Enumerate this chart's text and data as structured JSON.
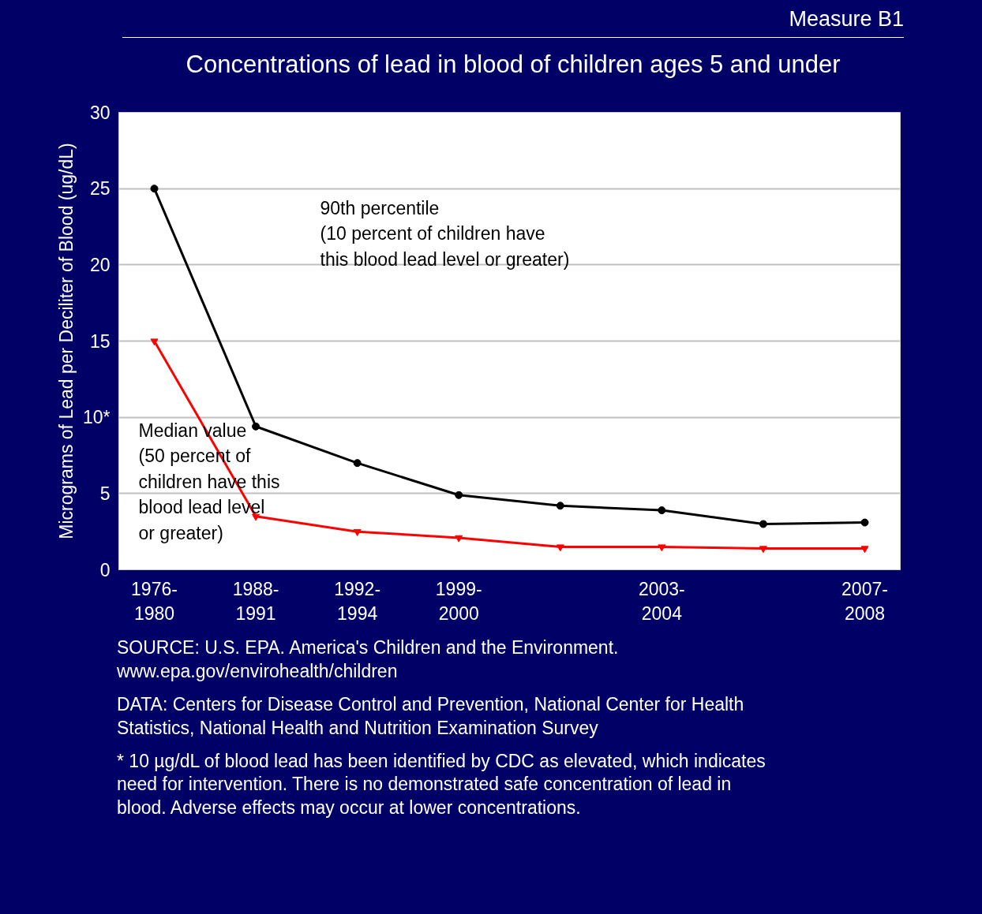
{
  "chart_data": {
    "type": "line",
    "title": "Concentrations of lead in blood of children ages 5 and under",
    "subtitle": "Measure B1",
    "ylabel": "Micrograms of Lead per Deciliter of Blood (ug/dL)",
    "categories": [
      "1976-\n1980",
      "1988-\n1991",
      "1992-\n1994",
      "1999-\n2000",
      null,
      "2003-\n2004",
      null,
      "2007-\n2008"
    ],
    "series": [
      {
        "color": "#000000",
        "marker": "circle",
        "values": [
          25.0,
          9.4,
          7.0,
          4.9,
          4.2,
          3.9,
          3.0,
          3.1
        ]
      },
      {
        "color": "#ff0000",
        "marker": "triangle",
        "values": [
          15.0,
          3.5,
          2.5,
          2.1,
          1.5,
          1.5,
          1.4,
          1.4
        ]
      }
    ],
    "ylim": [
      0,
      30
    ],
    "yticks": [
      0,
      5,
      {
        "value": 10,
        "label": "10*"
      },
      15,
      20,
      25,
      30
    ],
    "grid": "y",
    "annotations": [
      "90th percentile\n(10 percent of children have\nthis blood lead level or greater)",
      "Median value\n(50 percent of\nchildren have this\nblood lead level\nor greater)",
      "SOURCE: U.S. EPA. America's Children and the Environment.\nwww.epa.gov/envirohealth/children",
      "DATA: Centers for Disease Control and Prevention, National Center for Health\nStatistics, National Health and Nutrition Examination Survey",
      "* 10 µg/dL of blood lead has been identified by CDC as elevated, which indicates\nneed for intervention. There is no demonstrated safe concentration of lead in\nblood. Adverse effects may occur at lower concentrations."
    ]
  }
}
